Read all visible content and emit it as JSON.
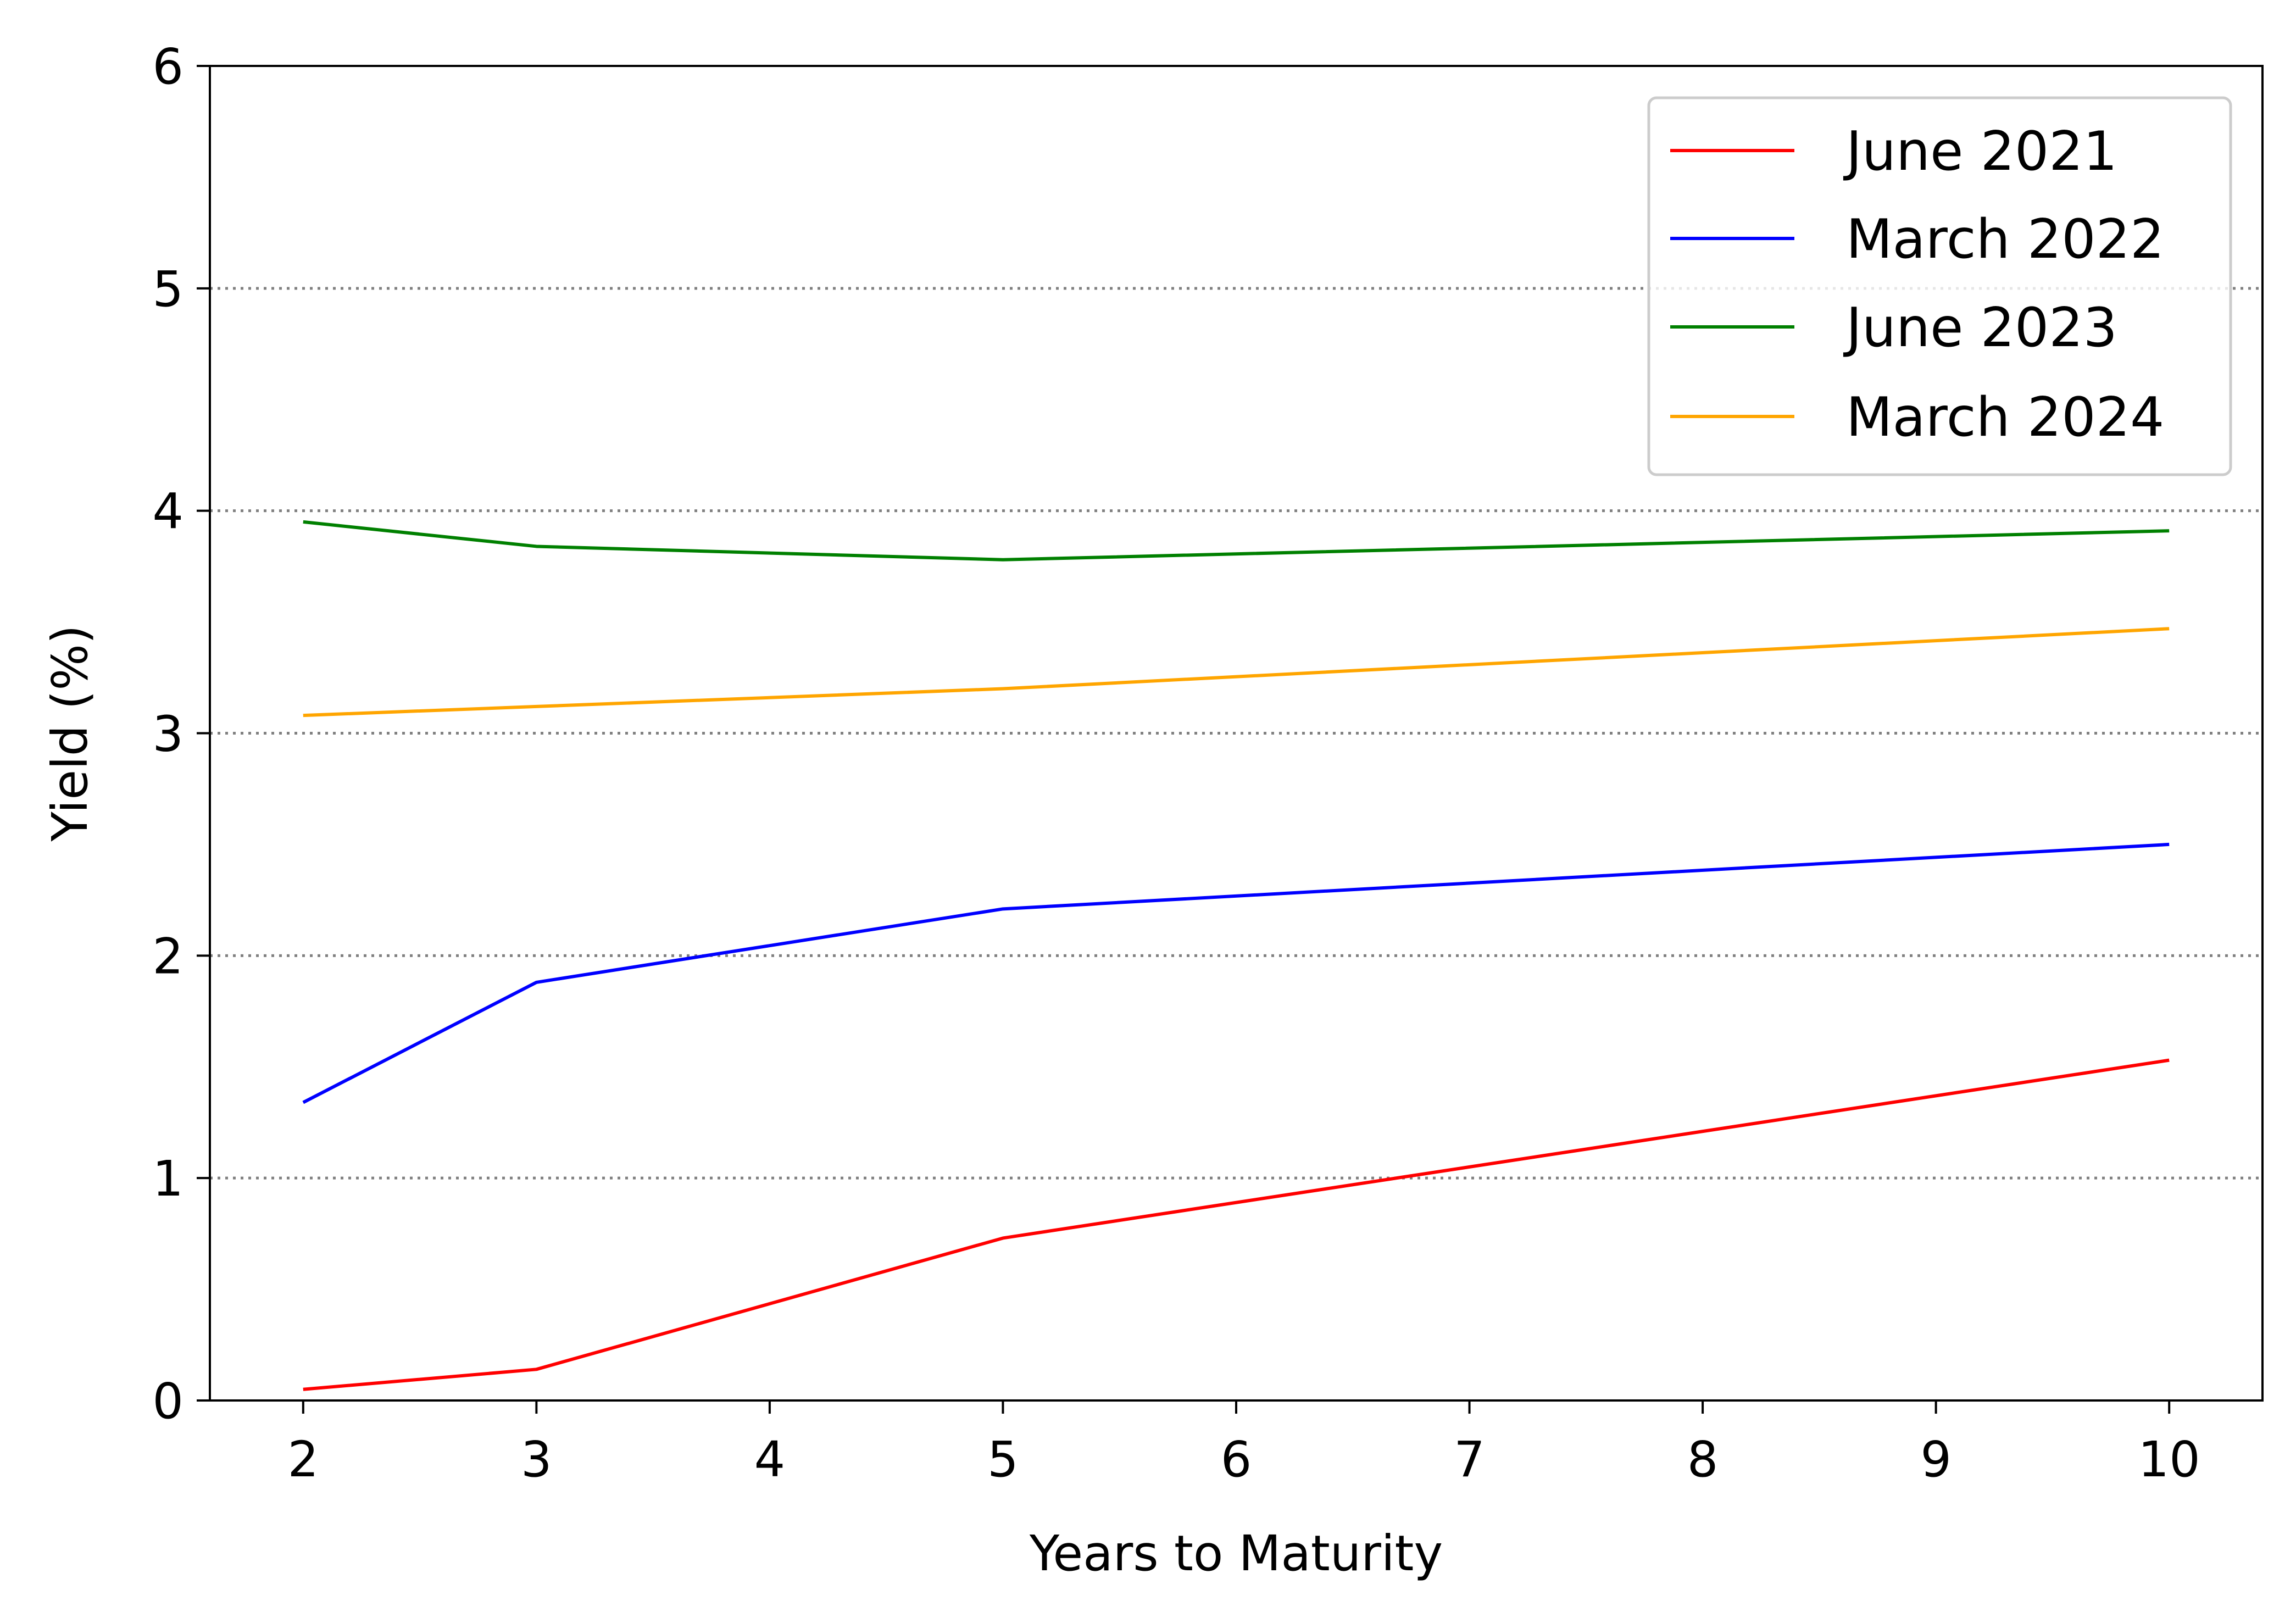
{
  "chart_data": {
    "type": "line",
    "title": "",
    "xlabel": "Years to Maturity",
    "ylabel": "Yield (%)",
    "xlim": [
      1.6,
      10.4
    ],
    "ylim": [
      0,
      6
    ],
    "x_ticks": [
      2,
      3,
      4,
      5,
      6,
      7,
      8,
      9,
      10
    ],
    "y_ticks": [
      0,
      1,
      2,
      3,
      4,
      5,
      6
    ],
    "grid": "horizontal dotted",
    "legend_position": "top-right",
    "x": [
      2,
      3,
      5,
      10
    ],
    "series": [
      {
        "name": "June 2021",
        "color": "#ff0000",
        "values": [
          0.05,
          0.14,
          0.73,
          1.53
        ]
      },
      {
        "name": "March 2022",
        "color": "#0000ff",
        "values": [
          1.34,
          1.88,
          2.21,
          2.5
        ]
      },
      {
        "name": "June 2023",
        "color": "#008000",
        "values": [
          3.95,
          3.84,
          3.78,
          3.91
        ]
      },
      {
        "name": "March 2024",
        "color": "#ffa500",
        "values": [
          3.08,
          3.12,
          3.2,
          3.47
        ]
      }
    ]
  }
}
